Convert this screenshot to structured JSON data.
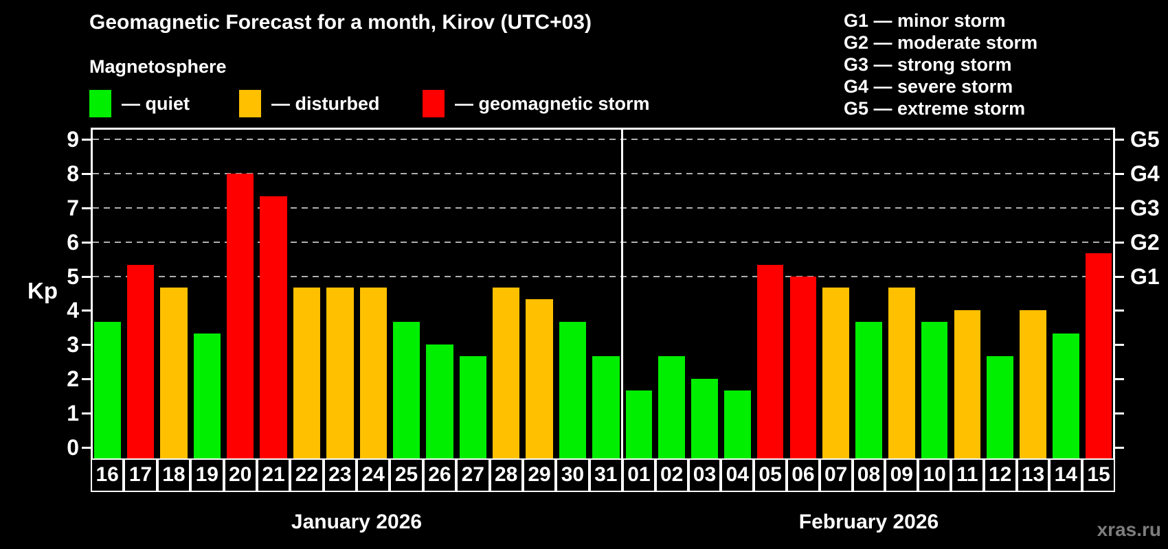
{
  "title": "Geomagnetic Forecast for a month, Kirov (UTC+03)",
  "subtitle": "Magnetosphere",
  "legend": {
    "quiet_label": "— quiet",
    "disturbed_label": "— disturbed",
    "storm_label": "— geomagnetic storm"
  },
  "g_legend": [
    "G1 — minor storm",
    "G2 — moderate storm",
    "G3 — strong storm",
    "G4 — severe storm",
    "G5 — extreme storm"
  ],
  "watermark": "xras.ru",
  "colors": {
    "background": "#000000",
    "quiet": "#00ee00",
    "disturbed": "#ffc000",
    "storm": "#ff0000",
    "grid": "#b0b0b0",
    "text": "#ffffff",
    "watermark": "#7d7d7d"
  },
  "chart_data": {
    "type": "bar",
    "ylabel": "Kp",
    "ylim": [
      0,
      9.3
    ],
    "yticks": [
      0,
      1,
      2,
      3,
      4,
      5,
      6,
      7,
      8,
      9
    ],
    "gridlines_at": [
      5,
      6,
      7,
      8,
      9
    ],
    "grid": true,
    "right_axis": [
      {
        "label": "G5",
        "kp": 9
      },
      {
        "label": "G4",
        "kp": 8
      },
      {
        "label": "G3",
        "kp": 7
      },
      {
        "label": "G2",
        "kp": 6
      },
      {
        "label": "G1",
        "kp": 5
      }
    ],
    "groups": [
      {
        "label": "January 2026",
        "days": [
          "16",
          "17",
          "18",
          "19",
          "20",
          "21",
          "22",
          "23",
          "24",
          "25",
          "26",
          "27",
          "28",
          "29",
          "30",
          "31"
        ],
        "values": [
          3.67,
          5.33,
          4.67,
          3.33,
          8.0,
          7.33,
          4.67,
          4.67,
          4.67,
          3.67,
          3.0,
          2.67,
          4.67,
          4.33,
          3.67,
          2.67
        ],
        "status": [
          "quiet",
          "storm",
          "disturbed",
          "quiet",
          "storm",
          "storm",
          "disturbed",
          "disturbed",
          "disturbed",
          "quiet",
          "quiet",
          "quiet",
          "disturbed",
          "disturbed",
          "quiet",
          "quiet"
        ]
      },
      {
        "label": "February 2026",
        "days": [
          "01",
          "02",
          "03",
          "04",
          "05",
          "06",
          "07",
          "08",
          "09",
          "10",
          "11",
          "12",
          "13",
          "14",
          "15"
        ],
        "values": [
          1.67,
          2.67,
          2.0,
          1.67,
          5.33,
          5.0,
          4.67,
          3.67,
          4.67,
          3.67,
          4.0,
          2.67,
          4.0,
          3.33,
          5.67
        ],
        "status": [
          "quiet",
          "quiet",
          "quiet",
          "quiet",
          "storm",
          "storm",
          "disturbed",
          "quiet",
          "disturbed",
          "quiet",
          "disturbed",
          "quiet",
          "disturbed",
          "quiet",
          "storm"
        ]
      }
    ]
  }
}
